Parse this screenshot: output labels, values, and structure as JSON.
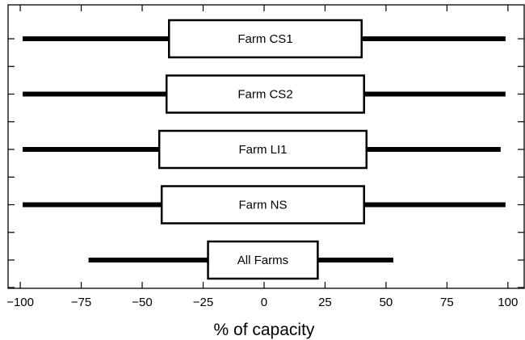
{
  "chart_data": {
    "type": "boxplot-horizontal",
    "xlabel": "% of capacity",
    "ylabel": "",
    "title": "",
    "xlim": [
      -105,
      107
    ],
    "xticks": [
      -100,
      -75,
      -50,
      -25,
      0,
      25,
      50,
      75,
      100
    ],
    "xtick_labels": [
      "−100",
      "−75",
      "−50",
      "−25",
      "0",
      "25",
      "50",
      "75",
      "100"
    ],
    "grid": false,
    "boxes": [
      {
        "label": "Farm CS1",
        "whisker_low": -99,
        "q1": -39,
        "q3": 40,
        "whisker_high": 99
      },
      {
        "label": "Farm CS2",
        "whisker_low": -99,
        "q1": -40,
        "q3": 41,
        "whisker_high": 99
      },
      {
        "label": "Farm LI1",
        "whisker_low": -99,
        "q1": -43,
        "q3": 42,
        "whisker_high": 97
      },
      {
        "label": "Farm NS",
        "whisker_low": -99,
        "q1": -42,
        "q3": 41,
        "whisker_high": 99
      },
      {
        "label": "All Farms",
        "whisker_low": -72,
        "q1": -23,
        "q3": 22,
        "whisker_high": 53
      }
    ]
  },
  "colors": {
    "line": "#000000",
    "box_fill": "#ffffff",
    "background": "#ffffff"
  }
}
